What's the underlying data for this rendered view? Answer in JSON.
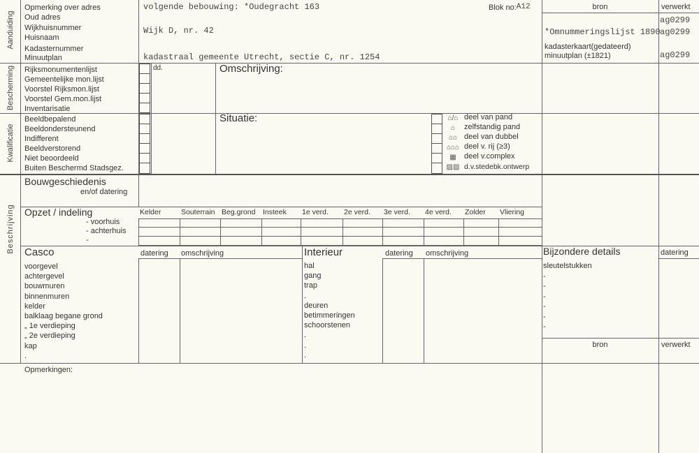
{
  "aanduiding": {
    "section_label": "Aanduiding",
    "labels": [
      "Opmerking over adres",
      "Oud adres",
      "Wijkhuisnummer",
      "Huisnaam",
      "Kadasternummer",
      "Minuutplan"
    ],
    "values": {
      "opmerking": "volgende bebouwing: *Oudegracht 163",
      "wijkhuisnummer": "Wijk D, nr. 42",
      "minuutplan": "kadastraal gemeente Utrecht, sectie C, nr. 1254"
    },
    "blok_label": "Blok no:",
    "blok_value": "A12"
  },
  "bronnen": {
    "bron_header": "bron",
    "verwerkt_header": "verwerkt",
    "rows": [
      {
        "bron": "",
        "verwerkt": "ag0299"
      },
      {
        "bron": "*Omnummeringslijst 1890",
        "verwerkt": "ag0299"
      },
      {
        "bron": "kadasterkaart(gedateerd)",
        "verwerkt": ""
      },
      {
        "bron": "minuutplan (±1821)",
        "verwerkt": "ag0299"
      }
    ]
  },
  "bescherming": {
    "section_label": "Bescherming",
    "labels": [
      "Rijksmonumentenlijst",
      "Gemeentelijke mon.lijst",
      "Voorstel Rijksmon.lijst",
      "Voorstel Gem.mon.lijst",
      "Inventarisatie"
    ],
    "dd_label": "dd.",
    "omschrijving_label": "Omschrijving:"
  },
  "kwalificatie": {
    "section_label": "Kwalificatie",
    "labels": [
      "Beeldbepalend",
      "Beeldondersteunend",
      "Indifferent",
      "Beeldverstorend",
      "Niet  beoordeeld",
      "Buiten Beschermd Stadsgez."
    ],
    "situatie_label": "Situatie:",
    "situatie_options": [
      {
        "label": "deel van pand",
        "icon": "building-part-icon"
      },
      {
        "label": "zelfstandig pand",
        "icon": "detached-building-icon"
      },
      {
        "label": "deel van dubbel",
        "icon": "semi-detached-icon"
      },
      {
        "label": "deel v. rij  (≥3)",
        "icon": "row-house-icon"
      },
      {
        "label": "deel v.complex",
        "icon": "complex-icon"
      },
      {
        "label": "d.v.stedebk.ontwerp",
        "icon": "urban-design-icon"
      }
    ]
  },
  "beschrijving": {
    "section_label": "Beschrijving",
    "bouwgeschiedenis": "Bouwgeschiedenis",
    "en_of_datering": "en/of datering",
    "opzet": "Opzet / indeling",
    "opzet_rows": [
      "- voorhuis",
      "- achterhuis",
      "-"
    ],
    "opzet_columns": [
      "Kelder",
      "Souterrain",
      "Beg.grond",
      "Insteek",
      "1e verd.",
      "2e verd.",
      "3e verd.",
      "4e verd.",
      "Zolder",
      "Vliering"
    ],
    "casco": "Casco",
    "casco_items": [
      "voorgevel",
      "achtergevel",
      "bouwmuren",
      "binnenmuren",
      "kelder",
      "balklaag begane grond",
      "„        1e verdieping",
      "„        2e verdieping",
      "kap",
      "."
    ],
    "datering": "datering",
    "omschrijving": "omschrijving",
    "interieur": "Interieur",
    "interieur_items": [
      "hal",
      "gang",
      "trap",
      ".",
      "deuren",
      "betimmeringen",
      "schoorstenen",
      ".",
      ".",
      "."
    ],
    "bijzondere_details": "Bijzondere details",
    "bijz_datering": "datering",
    "bijz_items": [
      "sleutelstukken",
      "-",
      "-",
      "-",
      "-",
      "-",
      "-"
    ],
    "bron2": "bron",
    "verwerkt2": "verwerkt"
  },
  "opmerkingen_label": "Opmerkingen:"
}
